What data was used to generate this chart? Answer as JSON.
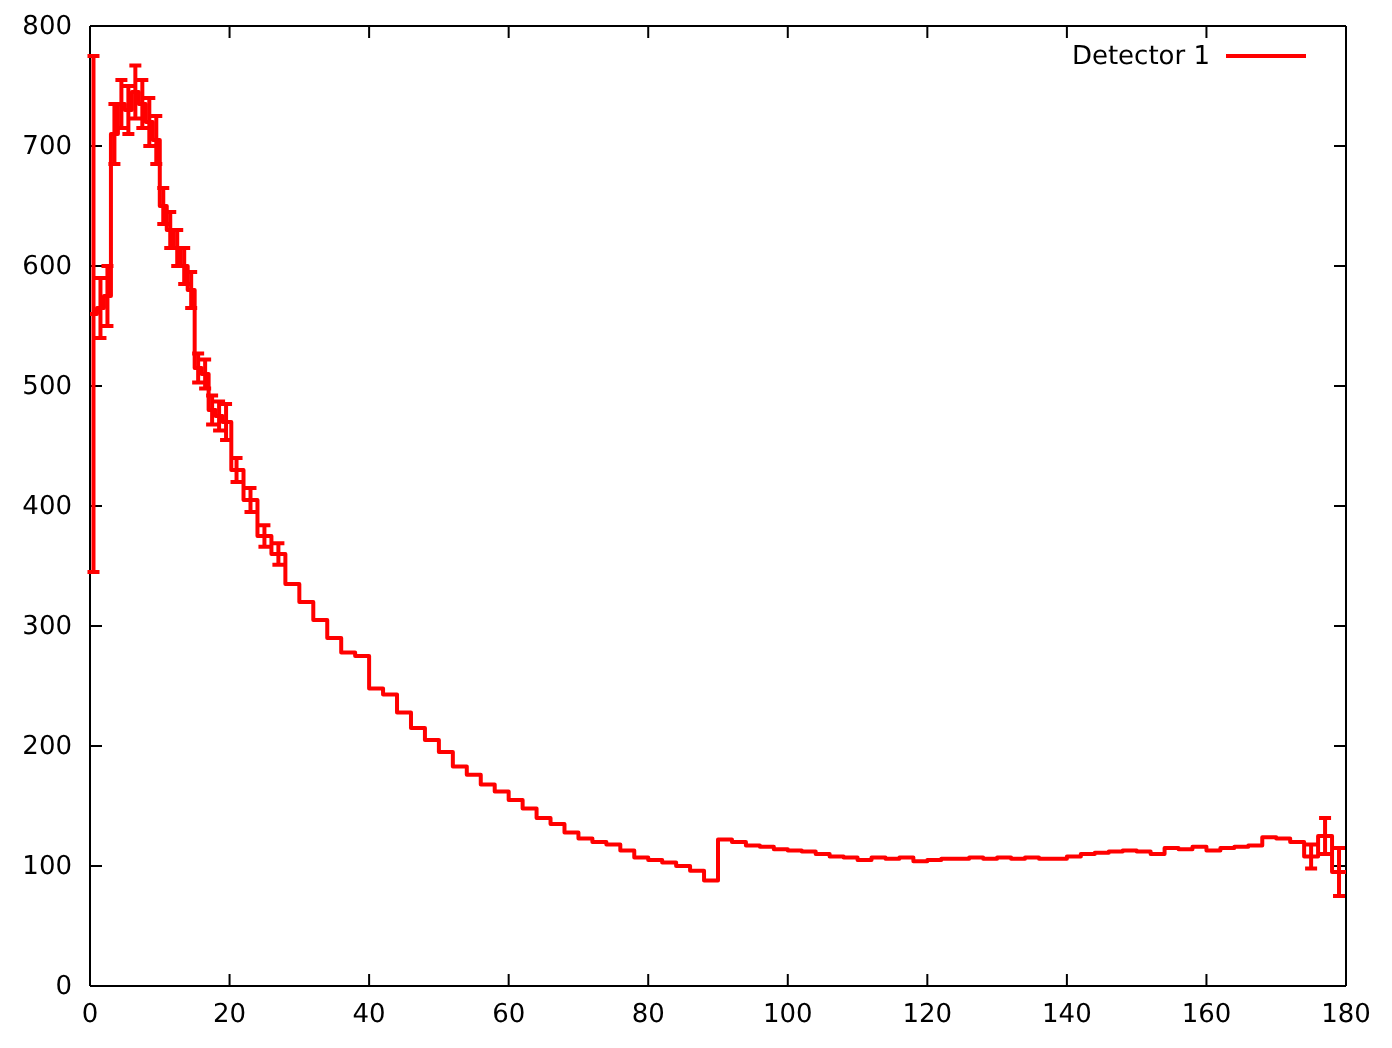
{
  "chart_data": {
    "type": "step",
    "x": [
      0.5,
      1.5,
      2.5,
      3.5,
      4.5,
      5.5,
      6.5,
      7.5,
      8.5,
      9.5,
      10.5,
      11.5,
      12.5,
      13.5,
      14.5,
      15.5,
      16.5,
      17.5,
      18.5,
      19.5,
      21,
      23,
      25,
      27,
      29,
      31,
      33,
      35,
      37,
      39,
      41,
      43,
      45,
      47,
      49,
      51,
      53,
      55,
      57,
      59,
      61,
      63,
      65,
      67,
      69,
      71,
      73,
      75,
      77,
      79,
      81,
      83,
      85,
      87,
      89,
      91,
      93,
      95,
      97,
      99,
      101,
      103,
      105,
      107,
      109,
      111,
      113,
      115,
      117,
      119,
      121,
      123,
      125,
      127,
      129,
      131,
      133,
      135,
      137,
      139,
      141,
      143,
      145,
      147,
      149,
      151,
      153,
      155,
      157,
      159,
      161,
      163,
      165,
      167,
      169,
      171,
      173,
      175,
      177,
      179
    ],
    "series": [
      {
        "name": "Detector 1",
        "color": "#ff0000",
        "values": [
          560,
          565,
          575,
          710,
          735,
          730,
          745,
          735,
          720,
          705,
          650,
          630,
          615,
          600,
          580,
          515,
          510,
          480,
          475,
          470,
          430,
          405,
          375,
          360,
          335,
          320,
          305,
          290,
          278,
          275,
          248,
          243,
          228,
          215,
          205,
          195,
          183,
          176,
          168,
          162,
          155,
          148,
          140,
          135,
          128,
          123,
          120,
          118,
          113,
          107,
          105,
          103,
          100,
          96,
          88,
          122,
          120,
          117,
          116,
          114,
          113,
          112,
          110,
          108,
          107,
          105,
          107,
          106,
          107,
          104,
          105,
          106,
          106,
          107,
          106,
          107,
          106,
          107,
          106,
          106,
          108,
          110,
          111,
          112,
          113,
          112,
          110,
          115,
          114,
          116,
          113,
          115,
          116,
          117,
          124,
          123,
          120,
          108,
          125,
          95
        ],
        "errors": [
          215,
          25,
          25,
          25,
          20,
          20,
          22,
          20,
          20,
          20,
          15,
          15,
          15,
          15,
          15,
          12,
          12,
          12,
          12,
          15,
          10,
          10,
          9,
          9,
          null,
          null,
          null,
          null,
          null,
          null,
          null,
          null,
          null,
          null,
          null,
          null,
          null,
          null,
          null,
          null,
          null,
          null,
          null,
          null,
          null,
          null,
          null,
          null,
          null,
          null,
          null,
          null,
          null,
          null,
          null,
          null,
          null,
          null,
          null,
          null,
          null,
          null,
          null,
          null,
          null,
          null,
          null,
          null,
          null,
          null,
          null,
          null,
          null,
          null,
          null,
          null,
          null,
          null,
          null,
          null,
          null,
          null,
          null,
          null,
          null,
          null,
          null,
          null,
          null,
          null,
          null,
          null,
          null,
          null,
          null,
          null,
          null,
          10,
          15,
          20
        ]
      }
    ],
    "xlim": [
      0,
      180
    ],
    "xticks": [
      0,
      20,
      40,
      60,
      80,
      100,
      120,
      140,
      160,
      180
    ],
    "ylim": [
      0,
      800
    ],
    "yticks": [
      0,
      100,
      200,
      300,
      400,
      500,
      600,
      700,
      800
    ],
    "legend": "top right",
    "grid": false
  }
}
